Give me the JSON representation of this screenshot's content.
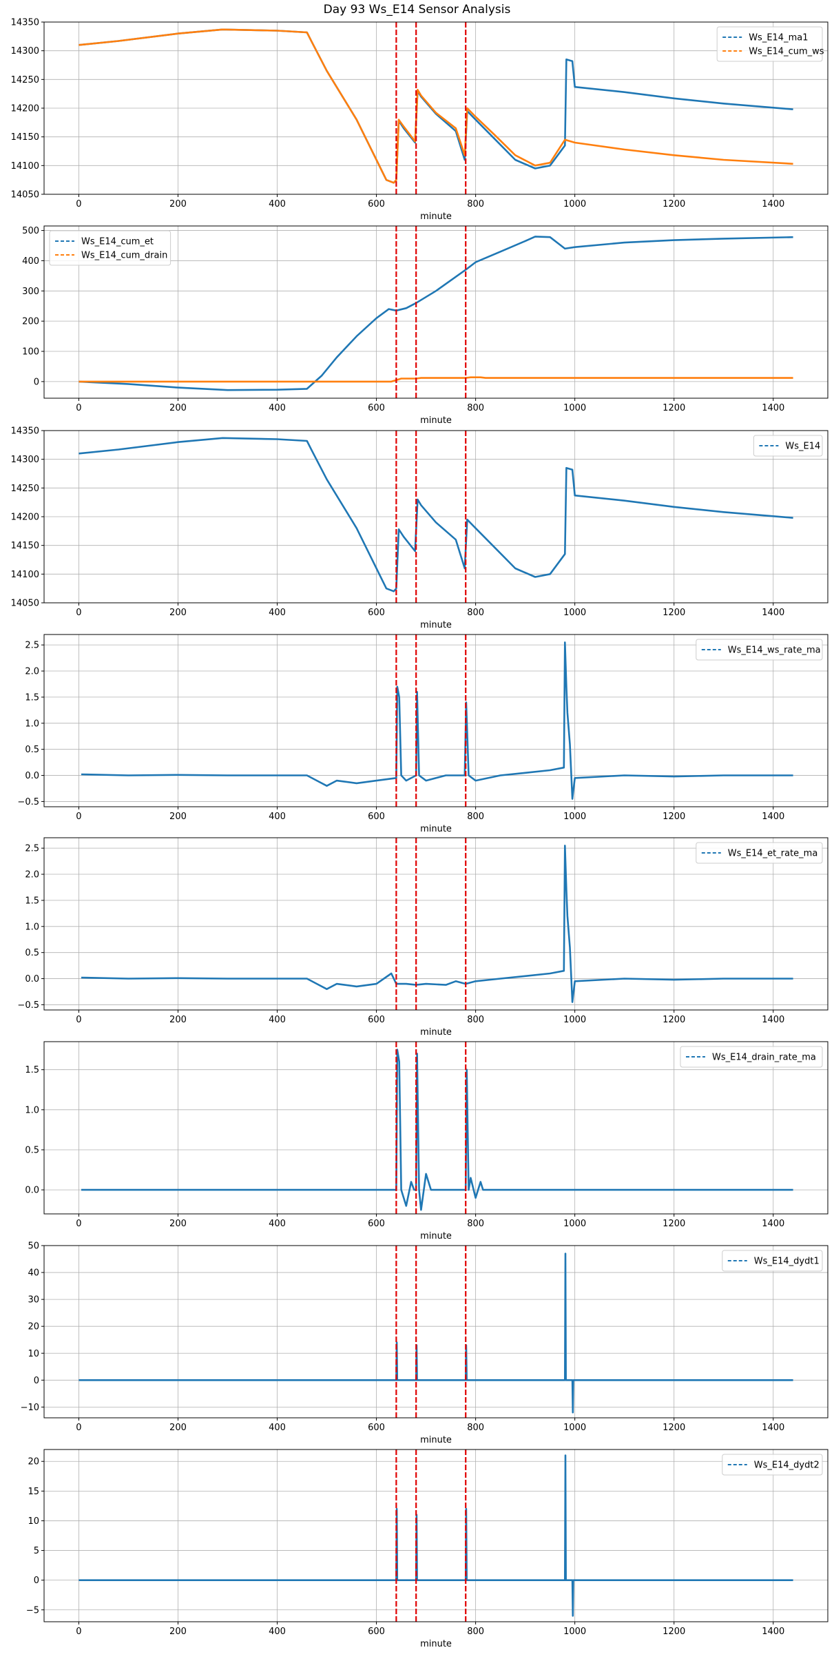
{
  "title": "Day 93 Ws_E14 Sensor Analysis",
  "colors": {
    "blue": "#1f77b4",
    "orange": "#ff7f0e",
    "event": "#e00000",
    "grid": "#b0b0b0"
  },
  "chart_data": [
    {
      "type": "line",
      "xlabel": "minute",
      "xlim": [
        -70,
        1510
      ],
      "xticks": [
        0,
        200,
        400,
        600,
        800,
        1000,
        1200,
        1400
      ],
      "ylim": [
        14050,
        14350
      ],
      "yticks": [
        14050,
        14100,
        14150,
        14200,
        14250,
        14300,
        14350
      ],
      "legend": "top-right",
      "events": [
        640,
        680,
        780
      ],
      "series": [
        {
          "name": "Ws_E14_ma1",
          "color": "blue",
          "x": [
            0,
            80,
            200,
            290,
            400,
            460,
            470,
            500,
            560,
            620,
            635,
            640,
            645,
            655,
            678,
            683,
            690,
            720,
            760,
            778,
            783,
            800,
            840,
            880,
            920,
            950,
            980,
            983,
            990,
            995,
            1000,
            1100,
            1200,
            1300,
            1440
          ],
          "y": [
            14310,
            14317,
            14330,
            14337,
            14335,
            14332,
            14315,
            14265,
            14180,
            14075,
            14070,
            14075,
            14178,
            14165,
            14140,
            14230,
            14220,
            14190,
            14160,
            14110,
            14195,
            14180,
            14145,
            14110,
            14095,
            14100,
            14135,
            14285,
            14283,
            14282,
            14237,
            14228,
            14217,
            14208,
            14198
          ]
        },
        {
          "name": "Ws_E14_cum_ws",
          "color": "orange",
          "x": [
            0,
            80,
            200,
            290,
            400,
            460,
            470,
            500,
            560,
            620,
            635,
            640,
            645,
            655,
            678,
            683,
            690,
            720,
            760,
            778,
            783,
            800,
            840,
            880,
            920,
            950,
            980,
            1000,
            1100,
            1200,
            1300,
            1440
          ],
          "y": [
            14310,
            14317,
            14330,
            14337,
            14335,
            14332,
            14315,
            14265,
            14180,
            14075,
            14070,
            14075,
            14180,
            14168,
            14142,
            14232,
            14222,
            14192,
            14165,
            14118,
            14200,
            14185,
            14152,
            14118,
            14100,
            14105,
            14145,
            14140,
            14128,
            14118,
            14110,
            14103
          ]
        }
      ]
    },
    {
      "type": "line",
      "xlabel": "minute",
      "xlim": [
        -70,
        1510
      ],
      "xticks": [
        0,
        200,
        400,
        600,
        800,
        1000,
        1200,
        1400
      ],
      "ylim": [
        -55,
        515
      ],
      "yticks": [
        0,
        100,
        200,
        300,
        400,
        500
      ],
      "legend": "top-left",
      "events": [
        640,
        680,
        780
      ],
      "series": [
        {
          "name": "Ws_E14_cum_et",
          "color": "blue",
          "x": [
            0,
            100,
            200,
            300,
            400,
            460,
            490,
            520,
            560,
            600,
            625,
            640,
            660,
            680,
            720,
            780,
            800,
            850,
            900,
            920,
            950,
            980,
            1000,
            1100,
            1200,
            1300,
            1440
          ],
          "y": [
            0,
            -8,
            -20,
            -28,
            -27,
            -24,
            20,
            80,
            150,
            210,
            240,
            235,
            243,
            260,
            300,
            370,
            395,
            430,
            465,
            480,
            478,
            440,
            445,
            460,
            468,
            473,
            478
          ]
        },
        {
          "name": "Ws_E14_cum_drain",
          "color": "orange",
          "x": [
            0,
            630,
            640,
            650,
            680,
            690,
            780,
            790,
            810,
            820,
            1440
          ],
          "y": [
            0,
            0,
            5,
            10,
            10,
            12,
            12,
            14,
            14,
            12,
            12
          ]
        }
      ]
    },
    {
      "type": "line",
      "xlabel": "minute",
      "xlim": [
        -70,
        1510
      ],
      "xticks": [
        0,
        200,
        400,
        600,
        800,
        1000,
        1200,
        1400
      ],
      "ylim": [
        14050,
        14350
      ],
      "yticks": [
        14050,
        14100,
        14150,
        14200,
        14250,
        14300,
        14350
      ],
      "legend": "top-right",
      "events": [
        640,
        680,
        780
      ],
      "series": [
        {
          "name": "Ws_E14",
          "color": "blue",
          "x": [
            0,
            80,
            200,
            290,
            400,
            460,
            470,
            500,
            560,
            620,
            635,
            640,
            645,
            655,
            678,
            683,
            690,
            720,
            760,
            778,
            783,
            800,
            840,
            880,
            920,
            950,
            980,
            983,
            990,
            995,
            1000,
            1100,
            1200,
            1300,
            1440
          ],
          "y": [
            14310,
            14317,
            14330,
            14337,
            14335,
            14332,
            14315,
            14265,
            14180,
            14075,
            14070,
            14075,
            14178,
            14165,
            14140,
            14230,
            14220,
            14190,
            14160,
            14110,
            14195,
            14180,
            14145,
            14110,
            14095,
            14100,
            14135,
            14285,
            14283,
            14282,
            14237,
            14228,
            14217,
            14208,
            14198
          ]
        }
      ]
    },
    {
      "type": "line",
      "xlabel": "minute",
      "xlim": [
        -70,
        1510
      ],
      "xticks": [
        0,
        200,
        400,
        600,
        800,
        1000,
        1200,
        1400
      ],
      "ylim": [
        -0.6,
        2.7
      ],
      "yticks": [
        -0.5,
        0.0,
        0.5,
        1.0,
        1.5,
        2.0,
        2.5
      ],
      "legend": "top-right",
      "events": [
        640,
        680,
        780
      ],
      "series": [
        {
          "name": "Ws_E14_ws_rate_ma",
          "color": "blue",
          "x": [
            5,
            100,
            200,
            300,
            400,
            460,
            480,
            500,
            520,
            560,
            600,
            640,
            642,
            646,
            650,
            660,
            680,
            682,
            686,
            700,
            740,
            778,
            781,
            786,
            800,
            850,
            900,
            950,
            978,
            980,
            983,
            985,
            990,
            995,
            1000,
            1100,
            1200,
            1300,
            1440
          ],
          "y": [
            0.02,
            0.0,
            0.01,
            0.0,
            0.0,
            0.0,
            -0.1,
            -0.2,
            -0.1,
            -0.15,
            -0.1,
            -0.05,
            1.7,
            1.5,
            0.0,
            -0.1,
            0.0,
            1.6,
            0.0,
            -0.1,
            0.0,
            0.0,
            1.4,
            0.0,
            -0.1,
            0.0,
            0.05,
            0.1,
            0.15,
            2.55,
            1.7,
            1.2,
            0.6,
            -0.45,
            -0.05,
            0.0,
            -0.02,
            0.0,
            0.0
          ]
        }
      ]
    },
    {
      "type": "line",
      "xlabel": "minute",
      "xlim": [
        -70,
        1510
      ],
      "xticks": [
        0,
        200,
        400,
        600,
        800,
        1000,
        1200,
        1400
      ],
      "ylim": [
        -0.6,
        2.7
      ],
      "yticks": [
        -0.5,
        0.0,
        0.5,
        1.0,
        1.5,
        2.0,
        2.5
      ],
      "legend": "top-right",
      "events": [
        640,
        680,
        780
      ],
      "series": [
        {
          "name": "Ws_E14_et_rate_ma",
          "color": "blue",
          "x": [
            5,
            100,
            200,
            300,
            400,
            460,
            480,
            500,
            520,
            560,
            600,
            630,
            640,
            660,
            680,
            700,
            740,
            760,
            780,
            800,
            850,
            900,
            950,
            978,
            980,
            983,
            985,
            990,
            995,
            1000,
            1100,
            1200,
            1300,
            1440
          ],
          "y": [
            0.02,
            0.0,
            0.01,
            0.0,
            0.0,
            0.0,
            -0.1,
            -0.2,
            -0.1,
            -0.15,
            -0.1,
            0.1,
            -0.1,
            -0.1,
            -0.12,
            -0.1,
            -0.12,
            -0.05,
            -0.1,
            -0.05,
            0.0,
            0.05,
            0.1,
            0.15,
            2.55,
            1.7,
            1.2,
            0.6,
            -0.45,
            -0.05,
            0.0,
            -0.02,
            0.0,
            0.0
          ]
        }
      ]
    },
    {
      "type": "line",
      "xlabel": "minute",
      "xlim": [
        -70,
        1510
      ],
      "xticks": [
        0,
        200,
        400,
        600,
        800,
        1000,
        1200,
        1400
      ],
      "ylim": [
        -0.3,
        1.85
      ],
      "yticks": [
        0.0,
        0.5,
        1.0,
        1.5
      ],
      "legend": "top-right",
      "events": [
        640,
        680,
        780
      ],
      "series": [
        {
          "name": "Ws_E14_drain_rate_ma",
          "color": "blue",
          "x": [
            5,
            636,
            640,
            642,
            646,
            650,
            660,
            670,
            676,
            680,
            682,
            686,
            690,
            700,
            710,
            720,
            776,
            780,
            782,
            786,
            790,
            800,
            810,
            815,
            1440
          ],
          "y": [
            0.0,
            0.0,
            0.0,
            1.75,
            1.6,
            0.0,
            -0.2,
            0.1,
            0.0,
            0.0,
            1.7,
            0.0,
            -0.25,
            0.2,
            0.0,
            0.0,
            0.0,
            0.0,
            1.5,
            0.0,
            0.15,
            -0.1,
            0.1,
            0.0,
            0.0
          ]
        }
      ]
    },
    {
      "type": "line",
      "xlabel": "minute",
      "xlim": [
        -70,
        1510
      ],
      "xticks": [
        0,
        200,
        400,
        600,
        800,
        1000,
        1200,
        1400
      ],
      "ylim": [
        -14,
        50
      ],
      "yticks": [
        -10,
        0,
        10,
        20,
        30,
        40,
        50
      ],
      "legend": "top-right",
      "events": [
        640,
        680,
        780
      ],
      "series": [
        {
          "name": "Ws_E14_dydt1",
          "color": "blue",
          "x": [
            0,
            400,
            600,
            640,
            641,
            642,
            680,
            681,
            682,
            780,
            781,
            782,
            900,
            980,
            981,
            982,
            995,
            996,
            997,
            1100,
            1440
          ],
          "y": [
            0,
            0,
            0,
            0,
            14,
            0,
            0,
            13,
            0,
            0,
            13,
            0,
            0,
            0,
            47,
            0,
            0,
            -12,
            0,
            0,
            0
          ]
        }
      ]
    },
    {
      "type": "line",
      "xlabel": "minute",
      "xlim": [
        -70,
        1510
      ],
      "xticks": [
        0,
        200,
        400,
        600,
        800,
        1000,
        1200,
        1400
      ],
      "ylim": [
        -7,
        22
      ],
      "yticks": [
        -5,
        0,
        5,
        10,
        15,
        20
      ],
      "legend": "top-right",
      "events": [
        640,
        680,
        780
      ],
      "series": [
        {
          "name": "Ws_E14_dydt2",
          "color": "blue",
          "x": [
            0,
            400,
            600,
            640,
            641,
            642,
            680,
            681,
            682,
            780,
            781,
            782,
            900,
            980,
            981,
            982,
            995,
            996,
            997,
            1100,
            1440
          ],
          "y": [
            0,
            0,
            0,
            0,
            12,
            0,
            0,
            11,
            0,
            0,
            12,
            0,
            0,
            0,
            21,
            0,
            0,
            -6,
            0,
            0,
            0
          ]
        }
      ]
    }
  ]
}
